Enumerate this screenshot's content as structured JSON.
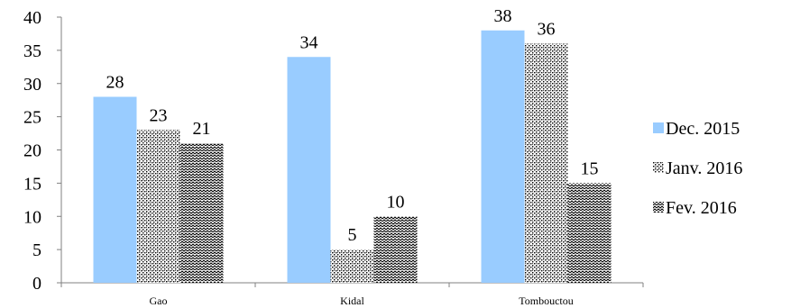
{
  "chart_data": {
    "type": "bar",
    "categories": [
      "Gao",
      "Kidal",
      "Tombouctou"
    ],
    "series": [
      {
        "name": "Dec. 2015",
        "values": [
          28,
          34,
          38
        ],
        "fill": "#99ccff",
        "pattern": "solid"
      },
      {
        "name": "Janv. 2016",
        "values": [
          23,
          5,
          36
        ],
        "fill": "#000000",
        "pattern": "dots"
      },
      {
        "name": "Fev. 2016",
        "values": [
          21,
          10,
          15
        ],
        "fill": "#000000",
        "pattern": "zigzag"
      }
    ],
    "ylim": [
      0,
      40
    ],
    "yticks": [
      0,
      5,
      10,
      15,
      20,
      25,
      30,
      35,
      40
    ],
    "grid": false,
    "legend_position": "right",
    "data_labels": true
  }
}
